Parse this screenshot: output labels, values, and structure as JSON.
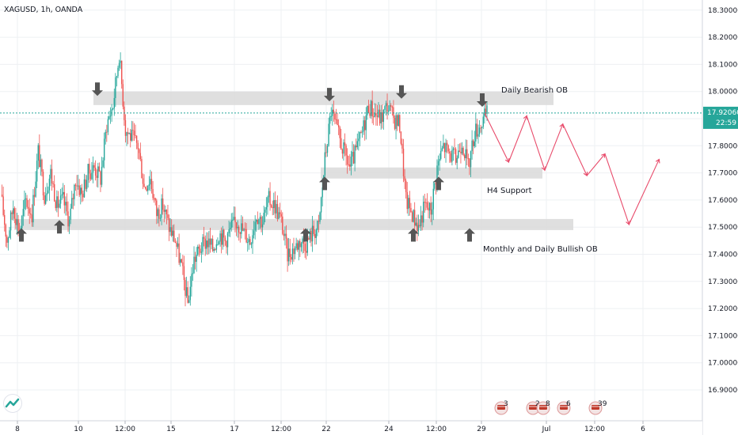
{
  "header": {
    "symbol": "XAGUSD, 1h, OANDA"
  },
  "colors": {
    "up": "#26a69a",
    "down": "#ef5350",
    "zone": "#d9d9d9",
    "arrow": "#555555",
    "projection": "#e84a6a",
    "price_line": "#26a69a",
    "price_tag": "#26a69a",
    "grid": "#eef0f3"
  },
  "price_tag": {
    "price": "17.92060",
    "countdown": "22:59"
  },
  "icons": [
    "tradingview-logo-icon",
    "arrow-up-icon",
    "arrow-down-icon",
    "event-flag-icon"
  ],
  "annotations": [
    "Daily Bearish OB",
    "H4 Support",
    "Monthly and Daily Bullish OB"
  ],
  "event_badges": [
    "3",
    "2",
    "8",
    "6",
    "39"
  ],
  "chart_data": {
    "type": "candlestick",
    "title": "XAGUSD, 1h, OANDA",
    "ylim": [
      16.85,
      18.35
    ],
    "y_ticks": [
      "18.30000",
      "18.20000",
      "18.10000",
      "18.00000",
      "17.90000",
      "17.80000",
      "17.70000",
      "17.60000",
      "17.50000",
      "17.40000",
      "17.30000",
      "17.20000",
      "17.10000",
      "17.00000",
      "16.90000"
    ],
    "x_ticks": [
      "8",
      "10",
      "12:00",
      "15",
      "17",
      "12:00",
      "22",
      "24",
      "12:00",
      "29",
      "Jul",
      "12:00",
      "6"
    ],
    "current_price": 17.9206,
    "zones": [
      {
        "label": "Daily Bearish OB",
        "low": 17.95,
        "high": 18.0
      },
      {
        "label": "H4 Support",
        "low": 17.69,
        "high": 17.72
      },
      {
        "label": "Monthly and Daily Bullish OB",
        "low": 17.49,
        "high": 17.53
      }
    ],
    "anchors": [
      [
        0,
        17.62
      ],
      [
        5,
        17.45
      ],
      [
        10,
        17.58
      ],
      [
        15,
        17.48
      ],
      [
        20,
        17.6
      ],
      [
        25,
        17.55
      ],
      [
        30,
        17.78
      ],
      [
        35,
        17.62
      ],
      [
        40,
        17.7
      ],
      [
        45,
        17.58
      ],
      [
        50,
        17.6
      ],
      [
        55,
        17.52
      ],
      [
        60,
        17.68
      ],
      [
        65,
        17.62
      ],
      [
        70,
        17.7
      ],
      [
        75,
        17.72
      ],
      [
        80,
        17.68
      ],
      [
        85,
        17.88
      ],
      [
        90,
        17.95
      ],
      [
        95,
        18.14
      ],
      [
        100,
        17.86
      ],
      [
        105,
        17.83
      ],
      [
        110,
        17.8
      ],
      [
        115,
        17.65
      ],
      [
        120,
        17.68
      ],
      [
        125,
        17.55
      ],
      [
        130,
        17.58
      ],
      [
        135,
        17.5
      ],
      [
        140,
        17.45
      ],
      [
        145,
        17.35
      ],
      [
        150,
        17.22
      ],
      [
        155,
        17.38
      ],
      [
        160,
        17.42
      ],
      [
        165,
        17.45
      ],
      [
        170,
        17.42
      ],
      [
        175,
        17.48
      ],
      [
        180,
        17.45
      ],
      [
        185,
        17.5
      ],
      [
        190,
        17.52
      ],
      [
        195,
        17.48
      ],
      [
        200,
        17.45
      ],
      [
        205,
        17.55
      ],
      [
        210,
        17.52
      ],
      [
        215,
        17.6
      ],
      [
        220,
        17.58
      ],
      [
        225,
        17.52
      ],
      [
        230,
        17.4
      ],
      [
        235,
        17.42
      ],
      [
        240,
        17.45
      ],
      [
        245,
        17.44
      ],
      [
        250,
        17.48
      ],
      [
        255,
        17.5
      ],
      [
        260,
        17.75
      ],
      [
        265,
        17.93
      ],
      [
        270,
        17.85
      ],
      [
        275,
        17.78
      ],
      [
        280,
        17.72
      ],
      [
        285,
        17.78
      ],
      [
        290,
        17.85
      ],
      [
        295,
        17.95
      ],
      [
        300,
        17.92
      ],
      [
        305,
        17.9
      ],
      [
        310,
        17.95
      ],
      [
        315,
        17.9
      ],
      [
        320,
        17.88
      ],
      [
        325,
        17.6
      ],
      [
        330,
        17.55
      ],
      [
        335,
        17.5
      ],
      [
        340,
        17.58
      ],
      [
        345,
        17.56
      ],
      [
        350,
        17.72
      ],
      [
        355,
        17.8
      ],
      [
        360,
        17.77
      ],
      [
        365,
        17.75
      ],
      [
        370,
        17.82
      ],
      [
        375,
        17.72
      ],
      [
        380,
        17.85
      ],
      [
        385,
        17.88
      ],
      [
        390,
        17.92
      ]
    ],
    "projection": [
      [
        17.92,
        0
      ],
      [
        17.74,
        4
      ],
      [
        17.91,
        7
      ],
      [
        17.71,
        10
      ],
      [
        17.88,
        13
      ],
      [
        17.69,
        17
      ],
      [
        17.77,
        20
      ],
      [
        17.51,
        24
      ],
      [
        17.75,
        29
      ]
    ],
    "up_arrows": [
      [
        27,
        17.47
      ],
      [
        75,
        17.5
      ],
      [
        386,
        17.47
      ],
      [
        410,
        17.66
      ],
      [
        522,
        17.47
      ],
      [
        554,
        17.66
      ],
      [
        593,
        17.47
      ]
    ],
    "down_arrows": [
      [
        123,
        18.01
      ],
      [
        416,
        17.99
      ],
      [
        507,
        18.0
      ],
      [
        609,
        17.97
      ]
    ]
  }
}
